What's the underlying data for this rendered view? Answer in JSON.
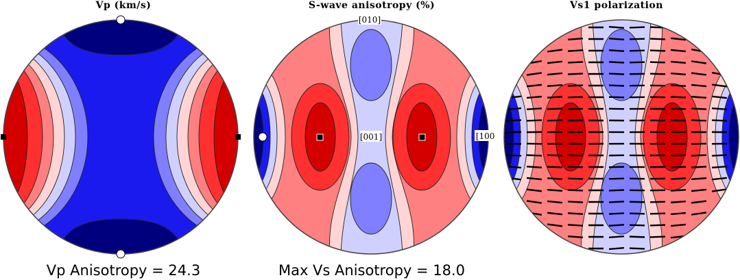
{
  "panels": [
    {
      "title": "Vp (km/s)",
      "caption": "Vp Anisotropy = 24.3",
      "pattern": "vp"
    },
    {
      "title": "S-wave anisotropy (%)",
      "caption": "Max Vs Anisotropy = 18.0",
      "pattern": "as",
      "labels": {
        "top": "[010]",
        "center": "[001]",
        "right": "[100]"
      }
    },
    {
      "title": "Vs1 polarization",
      "caption": "",
      "pattern": "vs1"
    }
  ],
  "colors": {
    "dark_blue": "#00007f",
    "blue": "#1a1aee",
    "mid_blue": "#7f7fff",
    "light_blue": "#d0d0ff",
    "pale_red": "#ffd4d4",
    "light_red": "#ff8080",
    "red": "#ff3030",
    "dark_red": "#d40000",
    "outline": "#444444"
  }
}
